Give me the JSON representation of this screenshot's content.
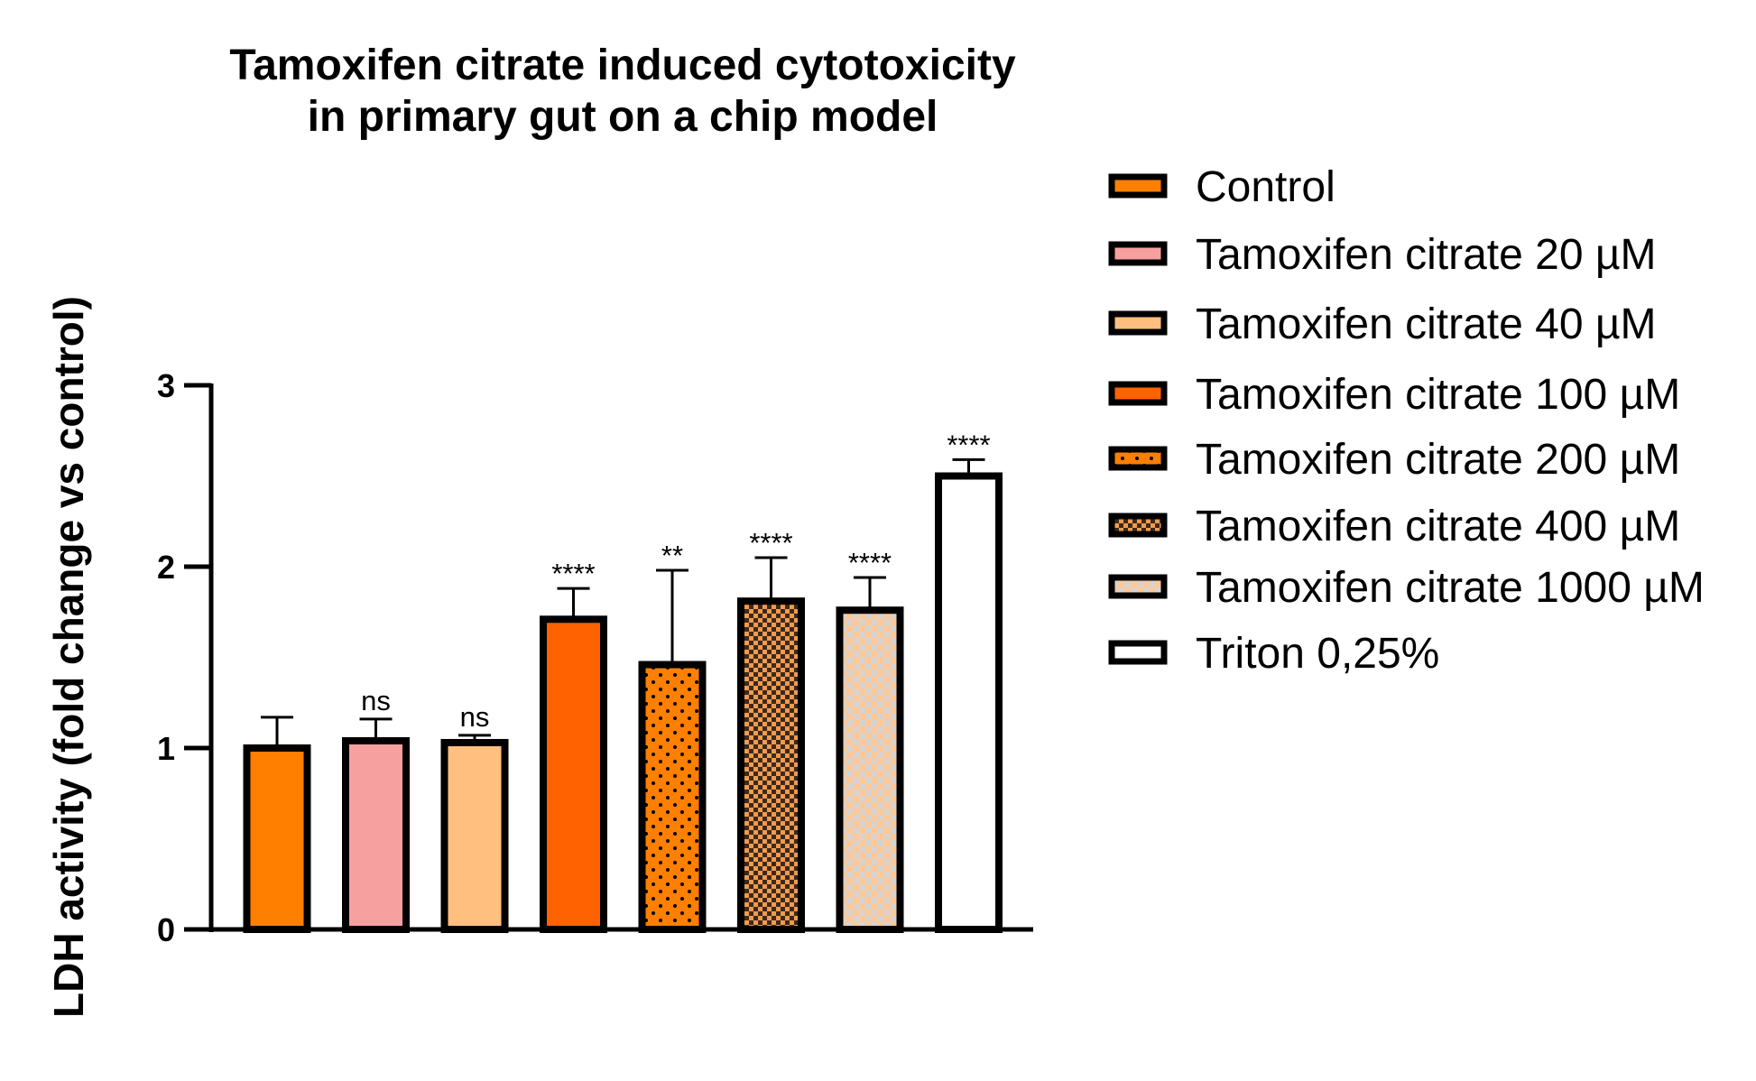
{
  "chart_data": {
    "type": "bar",
    "title": [
      "Tamoxifen citrate induced cytotoxicity",
      "in primary gut on a chip model"
    ],
    "xlabel": "",
    "ylabel": "LDH activity (fold change vs control)",
    "ylim": [
      0,
      3
    ],
    "yticks": [
      0,
      1,
      2,
      3
    ],
    "categories": [
      "Control",
      "Tamoxifen citrate 20 µM",
      "Tamoxifen citrate 40 µM",
      "Tamoxifen citrate 100 µM",
      "Tamoxifen citrate 200 µM",
      "Tamoxifen citrate 400 µM",
      "Tamoxifen citrate 1000 µM",
      "Triton 0,25%"
    ],
    "values": [
      1.0,
      1.04,
      1.03,
      1.71,
      1.46,
      1.81,
      1.76,
      2.5
    ],
    "errors": [
      0.17,
      0.12,
      0.04,
      0.17,
      0.52,
      0.24,
      0.18,
      0.09
    ],
    "annotations": [
      "",
      "ns",
      "ns",
      "****",
      "**",
      "****",
      "****",
      "****"
    ],
    "colors": [
      "#FF7F00",
      "#F7A0A0",
      "#FFC07F",
      "#FF6200",
      "#FF7F00",
      "#D96A1C",
      "#FFC896",
      "#FFFFFF"
    ],
    "patterns": [
      "solid",
      "solid",
      "solid",
      "solid",
      "dots",
      "checker",
      "checker-light",
      "solid"
    ],
    "legend_position": "right",
    "grid": false
  }
}
